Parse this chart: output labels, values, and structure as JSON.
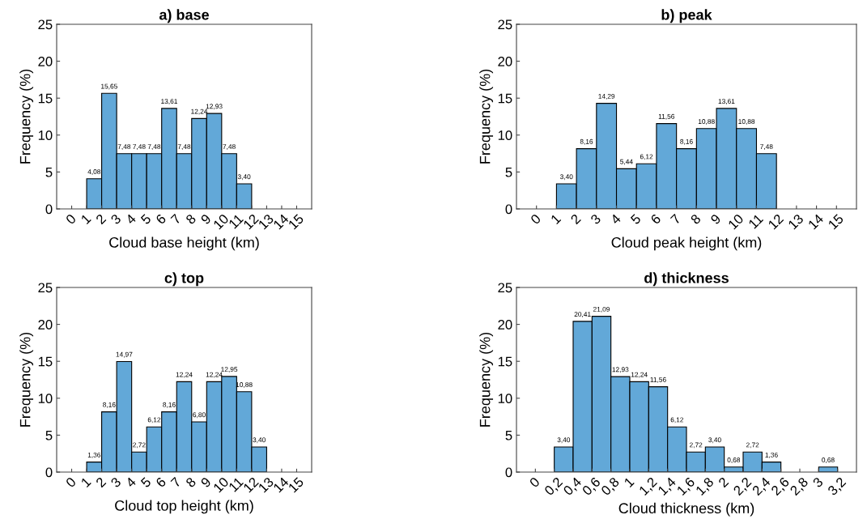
{
  "chart_data": [
    {
      "type": "histogram",
      "title": "a) base",
      "xlabel": "Cloud base height (km)",
      "ylabel": "Frequency (%)",
      "color": "#62a8d8",
      "bins": [
        1,
        2,
        3,
        4,
        5,
        6,
        7,
        8,
        9,
        10,
        11,
        12
      ],
      "values": [
        4.08,
        15.65,
        7.48,
        7.48,
        7.48,
        13.61,
        7.48,
        12.24,
        12.93,
        7.48,
        3.4
      ],
      "value_labels": [
        "4,08",
        "15,65",
        "7,48",
        "7,48",
        "7,48",
        "13,61",
        "7,48",
        "12,24",
        "12,93",
        "7,48",
        "3,40"
      ],
      "xlim": [
        -1,
        16
      ],
      "xticks": [
        0,
        1,
        2,
        3,
        4,
        5,
        6,
        7,
        8,
        9,
        10,
        11,
        12,
        13,
        14,
        15
      ],
      "ylim": [
        0,
        25
      ],
      "yticks": [
        0,
        5,
        10,
        15,
        20,
        25
      ],
      "grid": false
    },
    {
      "type": "histogram",
      "title": "b) peak",
      "xlabel": "Cloud peak height (km)",
      "ylabel": "Frequency (%)",
      "color": "#62a8d8",
      "bins": [
        1,
        2,
        3,
        4,
        5,
        6,
        7,
        8,
        9,
        10,
        11,
        12
      ],
      "values": [
        3.4,
        8.16,
        14.29,
        5.44,
        6.12,
        11.56,
        8.16,
        10.88,
        13.61,
        10.88,
        7.48
      ],
      "value_labels": [
        "3,40",
        "8,16",
        "14,29",
        "5,44",
        "6,12",
        "11,56",
        "8,16",
        "10,88",
        "13,61",
        "10,88",
        "7,48"
      ],
      "xlim": [
        -1,
        16
      ],
      "xticks": [
        0,
        1,
        2,
        3,
        4,
        5,
        6,
        7,
        8,
        9,
        10,
        11,
        12,
        13,
        14,
        15
      ],
      "ylim": [
        0,
        25
      ],
      "yticks": [
        0,
        5,
        10,
        15,
        20,
        25
      ],
      "grid": false
    },
    {
      "type": "histogram",
      "title": "c) top",
      "xlabel": "Cloud top height (km)",
      "ylabel": "Frequency (%)",
      "color": "#62a8d8",
      "bins": [
        1,
        2,
        3,
        4,
        5,
        6,
        7,
        8,
        9,
        10,
        11,
        12,
        13
      ],
      "values": [
        1.36,
        8.16,
        14.97,
        2.72,
        6.12,
        8.16,
        12.24,
        6.8,
        12.24,
        12.95,
        10.88,
        3.4
      ],
      "value_labels": [
        "1,36",
        "8,16",
        "14,97",
        "2,72",
        "6,12",
        "8,16",
        "12,24",
        "6,80",
        "12,24",
        "12,95",
        "10,88",
        "3,40"
      ],
      "xlim": [
        -1,
        16
      ],
      "xticks": [
        0,
        1,
        2,
        3,
        4,
        5,
        6,
        7,
        8,
        9,
        10,
        11,
        12,
        13,
        14,
        15
      ],
      "ylim": [
        0,
        25
      ],
      "yticks": [
        0,
        5,
        10,
        15,
        20,
        25
      ],
      "grid": false
    },
    {
      "type": "histogram",
      "title": "d) thickness",
      "xlabel": "Cloud thickness (km)",
      "ylabel": "Frequency (%)",
      "color": "#62a8d8",
      "bins": [
        0.2,
        0.4,
        0.6,
        0.8,
        1.0,
        1.2,
        1.4,
        1.6,
        1.8,
        2.0,
        2.2,
        2.4,
        2.6,
        2.8,
        3.0,
        3.2
      ],
      "values": [
        3.4,
        20.41,
        21.09,
        12.93,
        12.24,
        11.56,
        6.12,
        2.72,
        3.4,
        0.68,
        2.72,
        1.36,
        0,
        0,
        0.68
      ],
      "value_labels": [
        "3,40",
        "20,41",
        "21,09",
        "12,93",
        "12,24",
        "11,56",
        "6,12",
        "2,72",
        "3,40",
        "0,68",
        "2,72",
        "1,36",
        null,
        null,
        "0,68"
      ],
      "xlim": [
        -0.2,
        3.4
      ],
      "xticks": [
        0,
        {
          "value": 0.2,
          "label": "0,2"
        },
        {
          "value": 0.4,
          "label": "0,4"
        },
        {
          "value": 0.6,
          "label": "0,6"
        },
        {
          "value": 0.8,
          "label": "0,8"
        },
        1,
        {
          "value": 1.2,
          "label": "1,2"
        },
        {
          "value": 1.4,
          "label": "1,4"
        },
        {
          "value": 1.6,
          "label": "1,6"
        },
        {
          "value": 1.8,
          "label": "1,8"
        },
        2,
        {
          "value": 2.2,
          "label": "2,2"
        },
        {
          "value": 2.4,
          "label": "2,4"
        },
        {
          "value": 2.6,
          "label": "2,6"
        },
        {
          "value": 2.8,
          "label": "2,8"
        },
        3,
        {
          "value": 3.2,
          "label": "3,2"
        }
      ],
      "ylim": [
        0,
        25
      ],
      "yticks": [
        0,
        5,
        10,
        15,
        20,
        25
      ],
      "grid": false
    }
  ]
}
